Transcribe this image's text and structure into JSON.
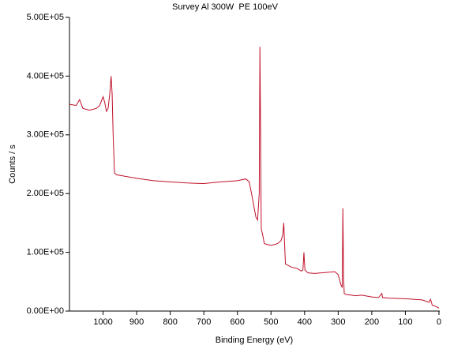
{
  "chart_data": {
    "type": "line",
    "title": "Survey Al 300W  PE 100eV",
    "xlabel": "Binding Energy (eV)",
    "ylabel": "Counts / s",
    "color": "#c0102a",
    "xlim": [
      1100,
      0
    ],
    "xticks": [
      1000,
      900,
      800,
      700,
      600,
      500,
      400,
      300,
      200,
      100,
      0
    ],
    "ylim": [
      0,
      500000
    ],
    "yticks": [
      {
        "value": 0,
        "label": "0.00E+00"
      },
      {
        "value": 100000,
        "label": "1.00E+05"
      },
      {
        "value": 200000,
        "label": "2.00E+05"
      },
      {
        "value": 300000,
        "label": "3.00E+05"
      },
      {
        "value": 400000,
        "label": "4.00E+05"
      },
      {
        "value": 500000,
        "label": "5.00E+05"
      }
    ],
    "x": [
      1100,
      1080,
      1070,
      1060,
      1040,
      1020,
      1010,
      1000,
      995,
      990,
      985,
      980,
      976,
      973,
      970,
      966,
      960,
      940,
      900,
      850,
      800,
      750,
      700,
      650,
      600,
      575,
      565,
      558,
      545,
      540,
      535,
      533,
      531,
      529,
      525,
      520,
      510,
      500,
      490,
      480,
      470,
      465,
      462,
      460,
      457,
      450,
      440,
      420,
      410,
      405,
      402,
      399,
      390,
      370,
      350,
      330,
      310,
      300,
      292,
      288,
      286,
      284,
      282,
      275,
      260,
      250,
      230,
      200,
      180,
      170,
      168,
      150,
      100,
      50,
      30,
      25,
      20,
      10,
      0
    ],
    "values": [
      352000,
      350000,
      360000,
      345000,
      342000,
      345000,
      350000,
      365000,
      355000,
      340000,
      345000,
      370000,
      400000,
      370000,
      300000,
      235000,
      232000,
      230000,
      226000,
      222000,
      220000,
      218000,
      217000,
      220000,
      222000,
      225000,
      220000,
      200000,
      160000,
      155000,
      200000,
      450000,
      300000,
      140000,
      130000,
      115000,
      113000,
      112000,
      113000,
      115000,
      120000,
      130000,
      150000,
      120000,
      80000,
      78000,
      75000,
      72000,
      68000,
      70000,
      100000,
      70000,
      65000,
      64000,
      65000,
      66000,
      67000,
      62000,
      45000,
      40000,
      175000,
      60000,
      30000,
      28000,
      27000,
      26000,
      27000,
      24000,
      23000,
      30000,
      23000,
      22000,
      21000,
      19000,
      15000,
      20000,
      10000,
      8000,
      5000
    ]
  }
}
